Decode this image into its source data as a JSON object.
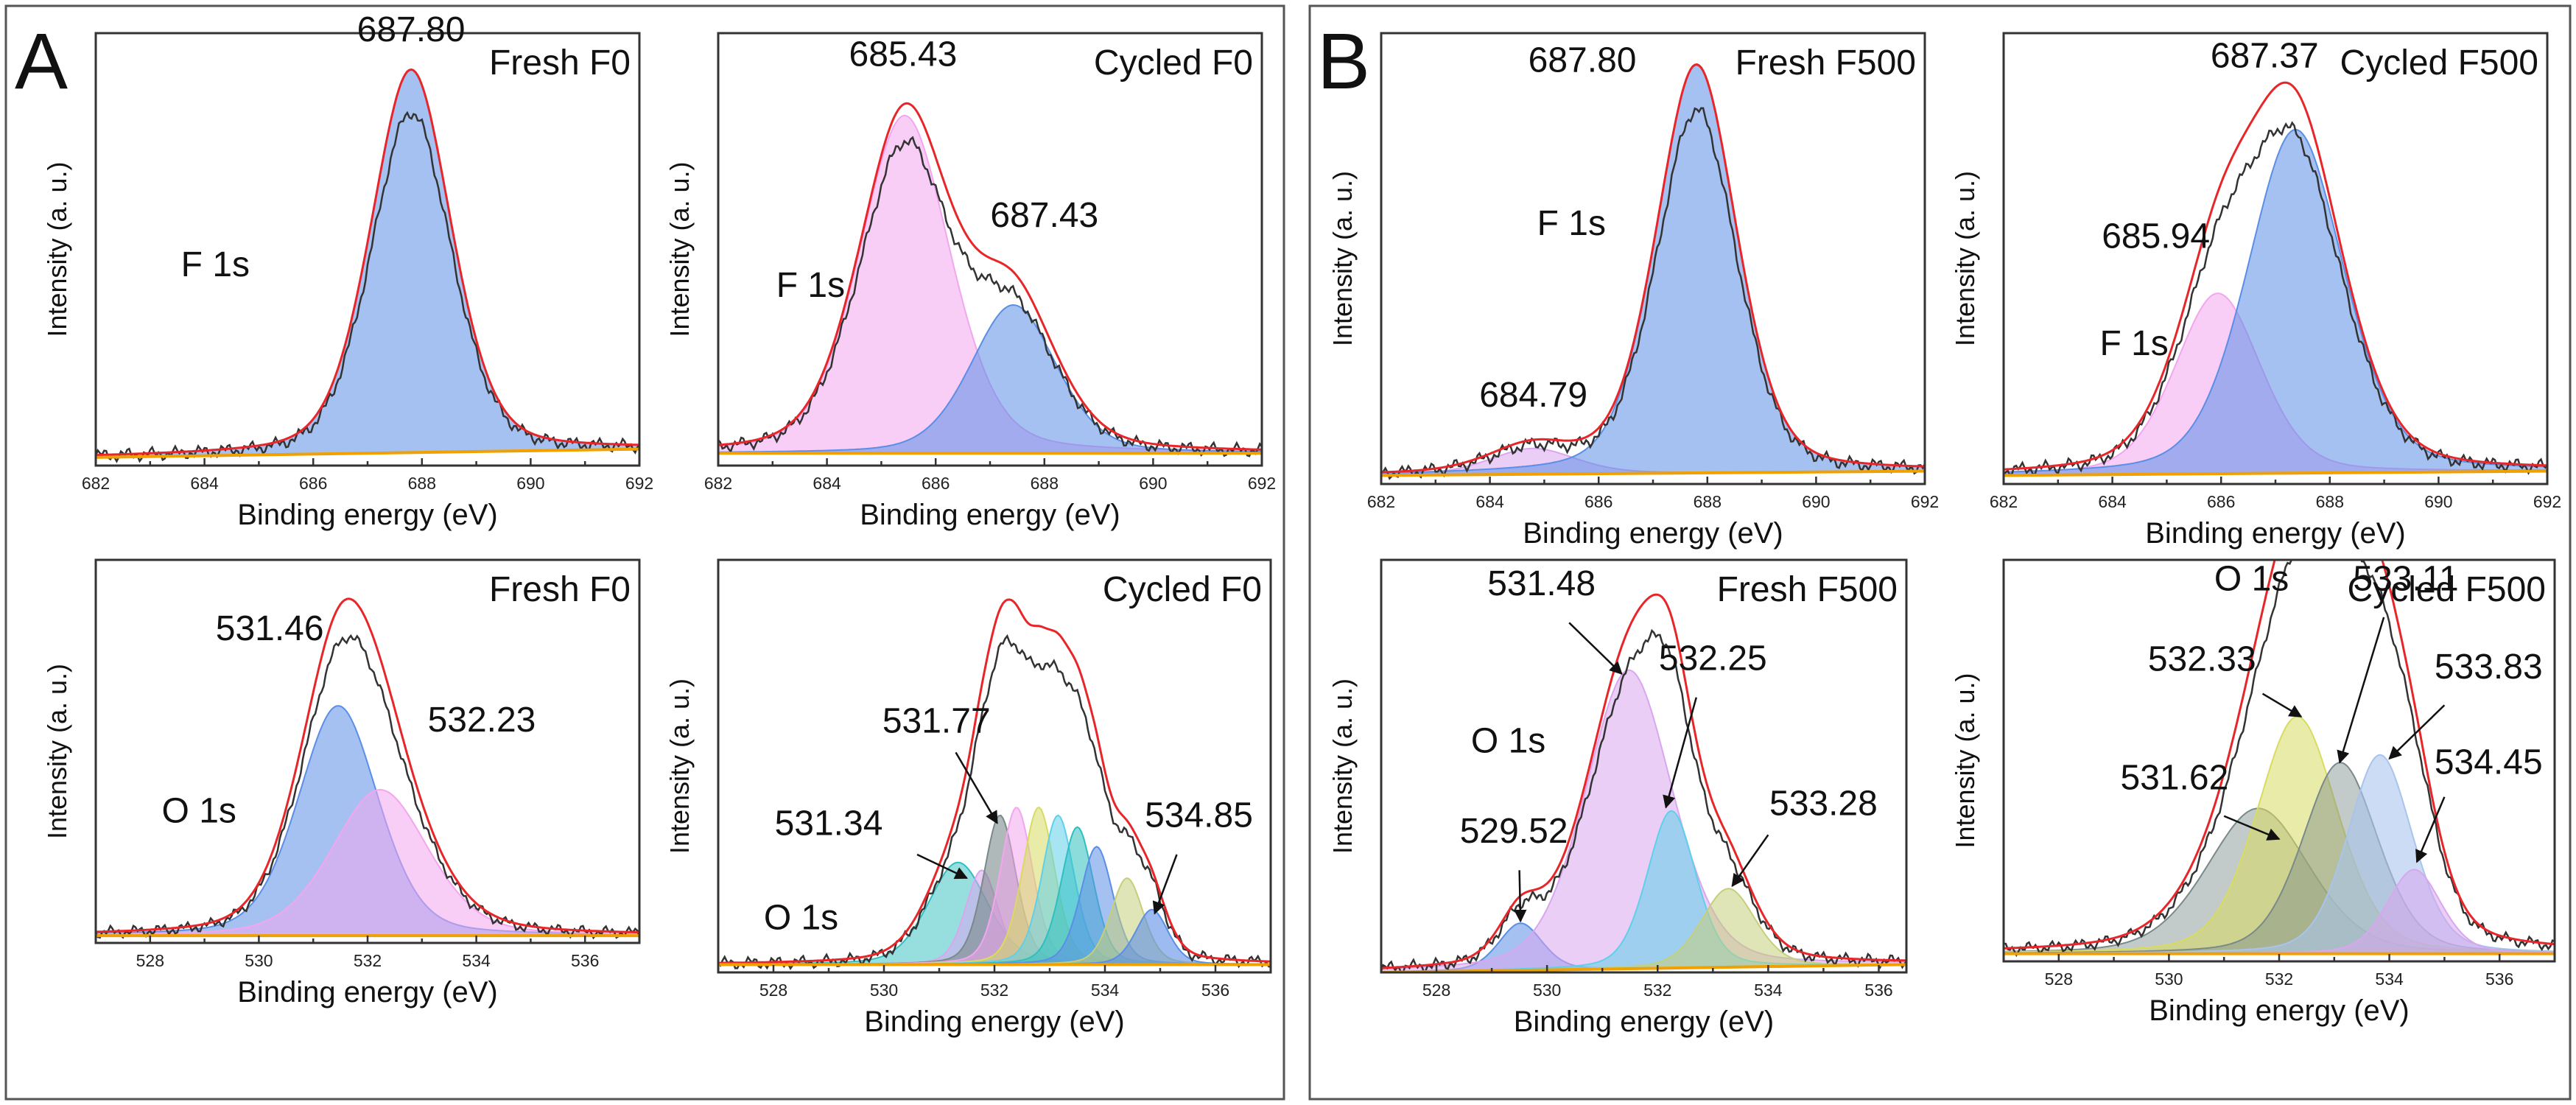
{
  "figure": {
    "groups": [
      {
        "letter": "A"
      },
      {
        "letter": "B"
      }
    ]
  },
  "colors": {
    "fit": "#e8262a",
    "raw": "#333333",
    "baseline": "#f0a000",
    "blue": "#5b8ee6",
    "pink": "#f2a6ee",
    "lavender": "#d9a6ef",
    "cyan": "#5fd0ea",
    "olive": "#c5cf7a",
    "yellow": "#d7dc60",
    "lightblue": "#a8c4ec",
    "teal": "#2fbfc0",
    "gray": "#7a8a8a"
  },
  "chart_data": [
    {
      "type": "area",
      "group": "A",
      "title": "Fresh F0",
      "xlabel": "Binding energy (eV)",
      "ylabel": "Intensity (a. u.)",
      "xlim": [
        682,
        692
      ],
      "ylim": [
        0,
        105
      ],
      "xticks": [
        682,
        684,
        686,
        688,
        690,
        692
      ],
      "tick_labels": [
        "682",
        "684",
        "686",
        "688",
        "690",
        "692"
      ],
      "baseline": [
        2,
        4
      ],
      "series": [
        {
          "name": "F 1s",
          "center": 687.8,
          "height": 93,
          "width": 0.75,
          "color": "#5b8ee6",
          "opacity": 0.55
        }
      ],
      "annotations": [
        {
          "text": "687.80",
          "x": 687.8,
          "y": 103
        },
        {
          "text": "F 1s",
          "x": 684.2,
          "y": 46
        }
      ]
    },
    {
      "type": "area",
      "group": "A",
      "title": "Cycled F0",
      "xlabel": "Binding energy (eV)",
      "ylabel": "Intensity (a. u.)",
      "xlim": [
        682,
        692
      ],
      "ylim": [
        0,
        105
      ],
      "xticks": [
        682,
        684,
        686,
        688,
        690,
        692
      ],
      "tick_labels": [
        "682",
        "684",
        "686",
        "688",
        "690",
        "692"
      ],
      "baseline": [
        3,
        3
      ],
      "series": [
        {
          "name": "peak 685.43",
          "center": 685.43,
          "height": 82,
          "width": 0.85,
          "color": "#f2a6ee",
          "opacity": 0.55
        },
        {
          "name": "peak 687.43",
          "center": 687.43,
          "height": 36,
          "width": 0.8,
          "color": "#5b8ee6",
          "opacity": 0.55
        }
      ],
      "annotations": [
        {
          "text": "685.43",
          "x": 685.4,
          "y": 97
        },
        {
          "text": "687.43",
          "x": 688.0,
          "y": 58
        },
        {
          "text": "F 1s",
          "x": 683.7,
          "y": 41
        }
      ]
    },
    {
      "type": "area",
      "group": "A",
      "title": "Fresh F0",
      "xlabel": "Binding energy (eV)",
      "ylabel": "Intensity (a. u.)",
      "xlim": [
        527,
        537
      ],
      "ylim": [
        0,
        105
      ],
      "xticks": [
        528,
        530,
        532,
        534,
        536
      ],
      "tick_labels": [
        "528",
        "530",
        "532",
        "534",
        "536"
      ],
      "baseline": [
        2,
        2
      ],
      "series": [
        {
          "name": "peak 531.46",
          "center": 531.46,
          "height": 63,
          "width": 0.75,
          "color": "#5b8ee6",
          "opacity": 0.55
        },
        {
          "name": "peak 532.23",
          "center": 532.23,
          "height": 40,
          "width": 0.9,
          "color": "#f2a6ee",
          "opacity": 0.55
        }
      ],
      "annotations": [
        {
          "text": "531.46",
          "x": 530.2,
          "y": 83
        },
        {
          "text": "532.23",
          "x": 534.1,
          "y": 58
        },
        {
          "text": "O 1s",
          "x": 528.9,
          "y": 33
        }
      ]
    },
    {
      "type": "area",
      "group": "A",
      "title": "Cycled F0",
      "xlabel": "Binding energy (eV)",
      "ylabel": "Intensity (a. u.)",
      "xlim": [
        527,
        537
      ],
      "ylim": [
        0,
        105
      ],
      "xticks": [
        528,
        530,
        532,
        534,
        536
      ],
      "tick_labels": [
        "528",
        "530",
        "532",
        "534",
        "536"
      ],
      "baseline": [
        2,
        2
      ],
      "series": [
        {
          "name": "peak 531.34",
          "center": 531.34,
          "height": 26,
          "width": 0.55,
          "color": "#2fbfc0",
          "opacity": 0.5
        },
        {
          "name": "peak 531.77",
          "center": 531.77,
          "height": 24,
          "width": 0.3,
          "color": "#d9a6ef",
          "opacity": 0.55
        },
        {
          "name": "peak 532.1",
          "center": 532.1,
          "height": 38,
          "width": 0.3,
          "color": "#7a8a8a",
          "opacity": 0.6
        },
        {
          "name": "peak 532.4",
          "center": 532.4,
          "height": 40,
          "width": 0.3,
          "color": "#f2a6ee",
          "opacity": 0.55
        },
        {
          "name": "peak 532.8",
          "center": 532.8,
          "height": 40,
          "width": 0.3,
          "color": "#d7dc60",
          "opacity": 0.55
        },
        {
          "name": "peak 533.15",
          "center": 533.15,
          "height": 38,
          "width": 0.3,
          "color": "#5fd0ea",
          "opacity": 0.55
        },
        {
          "name": "peak 533.5",
          "center": 533.5,
          "height": 35,
          "width": 0.3,
          "color": "#2fbfc0",
          "opacity": 0.55
        },
        {
          "name": "peak 533.85",
          "center": 533.85,
          "height": 30,
          "width": 0.3,
          "color": "#5b8ee6",
          "opacity": 0.55
        },
        {
          "name": "peak 534.4",
          "center": 534.4,
          "height": 22,
          "width": 0.3,
          "color": "#c5cf7a",
          "opacity": 0.55
        },
        {
          "name": "peak 534.85",
          "center": 534.85,
          "height": 14,
          "width": 0.3,
          "color": "#5b8ee6",
          "opacity": 0.6
        }
      ],
      "annotations": [
        {
          "text": "531.77",
          "x": 530.95,
          "y": 61
        },
        {
          "text": "531.34",
          "x": 529.0,
          "y": 35
        },
        {
          "text": "534.85",
          "x": 535.7,
          "y": 37
        },
        {
          "text": "O 1s",
          "x": 528.5,
          "y": 11
        }
      ],
      "arrows": [
        {
          "from": [
            531.3,
            56
          ],
          "to": [
            532.05,
            38
          ]
        },
        {
          "from": [
            530.6,
            30
          ],
          "to": [
            531.5,
            24
          ]
        },
        {
          "from": [
            535.3,
            30
          ],
          "to": [
            534.9,
            15
          ]
        }
      ]
    },
    {
      "type": "area",
      "group": "B",
      "title": "Fresh F500",
      "xlabel": "Binding energy (eV)",
      "ylabel": "Intensity (a. u.)",
      "xlim": [
        682,
        692
      ],
      "ylim": [
        0,
        105
      ],
      "xticks": [
        682,
        684,
        686,
        688,
        690,
        692
      ],
      "tick_labels": [
        "682",
        "684",
        "686",
        "688",
        "690",
        "692"
      ],
      "baseline": [
        2,
        3
      ],
      "series": [
        {
          "name": "peak 684.79",
          "center": 684.79,
          "height": 6,
          "width": 0.8,
          "color": "#d9a6ef",
          "opacity": 0.55
        },
        {
          "name": "F 1s",
          "center": 687.8,
          "height": 95,
          "width": 0.75,
          "color": "#5b8ee6",
          "opacity": 0.55
        }
      ],
      "annotations": [
        {
          "text": "687.80",
          "x": 685.7,
          "y": 96
        },
        {
          "text": "F 1s",
          "x": 685.5,
          "y": 58
        },
        {
          "text": "684.79",
          "x": 684.8,
          "y": 18
        }
      ]
    },
    {
      "type": "area",
      "group": "B",
      "title": "Cycled F500",
      "xlabel": "Binding energy (eV)",
      "ylabel": "Intensity (a. u.)",
      "xlim": [
        682,
        692
      ],
      "ylim": [
        0,
        105
      ],
      "xticks": [
        682,
        684,
        686,
        688,
        690,
        692
      ],
      "tick_labels": [
        "682",
        "684",
        "686",
        "688",
        "690",
        "692"
      ],
      "baseline": [
        2,
        3
      ],
      "series": [
        {
          "name": "peak 685.94",
          "center": 685.94,
          "height": 42,
          "width": 0.8,
          "color": "#f2a6ee",
          "opacity": 0.55
        },
        {
          "name": "peak 687.37",
          "center": 687.37,
          "height": 80,
          "width": 0.9,
          "color": "#5b8ee6",
          "opacity": 0.55
        }
      ],
      "annotations": [
        {
          "text": "687.37",
          "x": 686.8,
          "y": 97
        },
        {
          "text": "685.94",
          "x": 684.8,
          "y": 55
        },
        {
          "text": "F 1s",
          "x": 684.4,
          "y": 30
        }
      ]
    },
    {
      "type": "area",
      "group": "B",
      "title": "Fresh F500",
      "xlabel": "Binding energy (eV)",
      "ylabel": "Intensity (a. u.)",
      "xlim": [
        527,
        536.5
      ],
      "ylim": [
        0,
        105
      ],
      "xticks": [
        528,
        530,
        532,
        534,
        536
      ],
      "tick_labels": [
        "528",
        "530",
        "532",
        "534",
        "536"
      ],
      "baseline": [
        0,
        2
      ],
      "series": [
        {
          "name": "peak 529.52",
          "center": 529.52,
          "height": 12,
          "width": 0.4,
          "color": "#5b8ee6",
          "opacity": 0.55
        },
        {
          "name": "peak 531.48",
          "center": 531.48,
          "height": 76,
          "width": 0.8,
          "color": "#d9a6ef",
          "opacity": 0.55
        },
        {
          "name": "peak 532.25",
          "center": 532.25,
          "height": 40,
          "width": 0.45,
          "color": "#5fd0ea",
          "opacity": 0.55
        },
        {
          "name": "peak 533.28",
          "center": 533.28,
          "height": 20,
          "width": 0.5,
          "color": "#c5cf7a",
          "opacity": 0.55
        }
      ],
      "annotations": [
        {
          "text": "531.48",
          "x": 529.9,
          "y": 96
        },
        {
          "text": "532.25",
          "x": 533.0,
          "y": 77
        },
        {
          "text": "O 1s",
          "x": 529.3,
          "y": 56
        },
        {
          "text": "533.28",
          "x": 535.0,
          "y": 40
        },
        {
          "text": "529.52",
          "x": 529.4,
          "y": 33
        }
      ],
      "arrows": [
        {
          "from": [
            530.4,
            89
          ],
          "to": [
            531.35,
            76
          ]
        },
        {
          "from": [
            532.7,
            70
          ],
          "to": [
            532.15,
            42
          ]
        },
        {
          "from": [
            534.0,
            35
          ],
          "to": [
            533.35,
            22
          ]
        },
        {
          "from": [
            529.5,
            26
          ],
          "to": [
            529.52,
            13
          ]
        }
      ]
    },
    {
      "type": "area",
      "group": "B",
      "title": "Cycled F500",
      "xlabel": "Binding energy (eV)",
      "ylabel": "Intensity (a. u.)",
      "xlim": [
        527,
        537
      ],
      "ylim": [
        0,
        105
      ],
      "xticks": [
        528,
        530,
        532,
        534,
        536
      ],
      "tick_labels": [
        "528",
        "530",
        "532",
        "534",
        "536"
      ],
      "baseline": [
        2,
        2
      ],
      "series": [
        {
          "name": "peak 531.62",
          "center": 531.62,
          "height": 38,
          "width": 0.95,
          "color": "#7a8a8a",
          "opacity": 0.45
        },
        {
          "name": "peak 532.33",
          "center": 532.33,
          "height": 62,
          "width": 0.75,
          "color": "#d7dc60",
          "opacity": 0.55
        },
        {
          "name": "peak 533.11",
          "center": 533.11,
          "height": 50,
          "width": 0.7,
          "color": "#7a8a8a",
          "opacity": 0.45
        },
        {
          "name": "peak 533.83",
          "center": 533.83,
          "height": 52,
          "width": 0.6,
          "color": "#a8c4ec",
          "opacity": 0.6
        },
        {
          "name": "peak 534.45",
          "center": 534.45,
          "height": 22,
          "width": 0.5,
          "color": "#d9a6ef",
          "opacity": 0.55
        }
      ],
      "annotations": [
        {
          "text": "O 1s",
          "x": 531.5,
          "y": 97
        },
        {
          "text": "533.11",
          "x": 534.3,
          "y": 97
        },
        {
          "text": "532.33",
          "x": 530.6,
          "y": 76
        },
        {
          "text": "533.83",
          "x": 535.8,
          "y": 74
        },
        {
          "text": "534.45",
          "x": 535.8,
          "y": 49
        },
        {
          "text": "531.62",
          "x": 530.1,
          "y": 45
        }
      ],
      "arrows": [
        {
          "from": [
            531.7,
            70
          ],
          "to": [
            532.4,
            64
          ]
        },
        {
          "from": [
            533.9,
            90
          ],
          "to": [
            533.1,
            52
          ]
        },
        {
          "from": [
            535.0,
            67
          ],
          "to": [
            534.0,
            53
          ]
        },
        {
          "from": [
            535.0,
            43
          ],
          "to": [
            534.5,
            26
          ]
        },
        {
          "from": [
            531.0,
            38
          ],
          "to": [
            532.0,
            32
          ]
        }
      ]
    }
  ]
}
